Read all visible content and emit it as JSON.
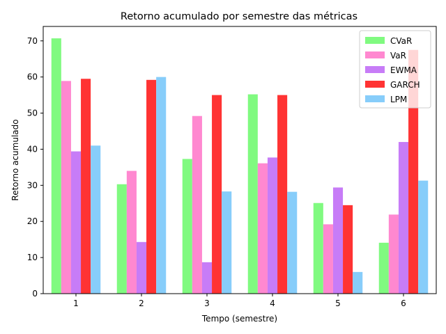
{
  "chart_data": {
    "type": "bar",
    "title": "Retorno acumulado por semestre das métricas",
    "xlabel": "Tempo (semestre)",
    "ylabel": "Retorno acumulado",
    "categories": [
      "1",
      "2",
      "3",
      "4",
      "5",
      "6"
    ],
    "ylim": [
      0,
      74
    ],
    "yticks": [
      0,
      10,
      20,
      30,
      40,
      50,
      60,
      70
    ],
    "grid": false,
    "legend_position": "top-right",
    "series": [
      {
        "name": "CVaR",
        "color": "#80fa80",
        "values": [
          70.7,
          30.3,
          37.3,
          55.2,
          25.1,
          14.1
        ]
      },
      {
        "name": "VaR",
        "color": "#ff88d0",
        "values": [
          58.9,
          34.0,
          49.2,
          36.1,
          19.2,
          21.9
        ]
      },
      {
        "name": "EWMA",
        "color": "#c77cf7",
        "values": [
          39.4,
          14.3,
          8.7,
          37.7,
          29.4,
          42.0
        ]
      },
      {
        "name": "GARCH",
        "color": "#ff3333",
        "values": [
          59.5,
          59.2,
          55.0,
          55.0,
          24.5,
          67.5
        ]
      },
      {
        "name": "LPM",
        "color": "#87cdfa",
        "values": [
          41.0,
          60.0,
          28.3,
          28.2,
          6.0,
          31.3
        ]
      }
    ]
  }
}
